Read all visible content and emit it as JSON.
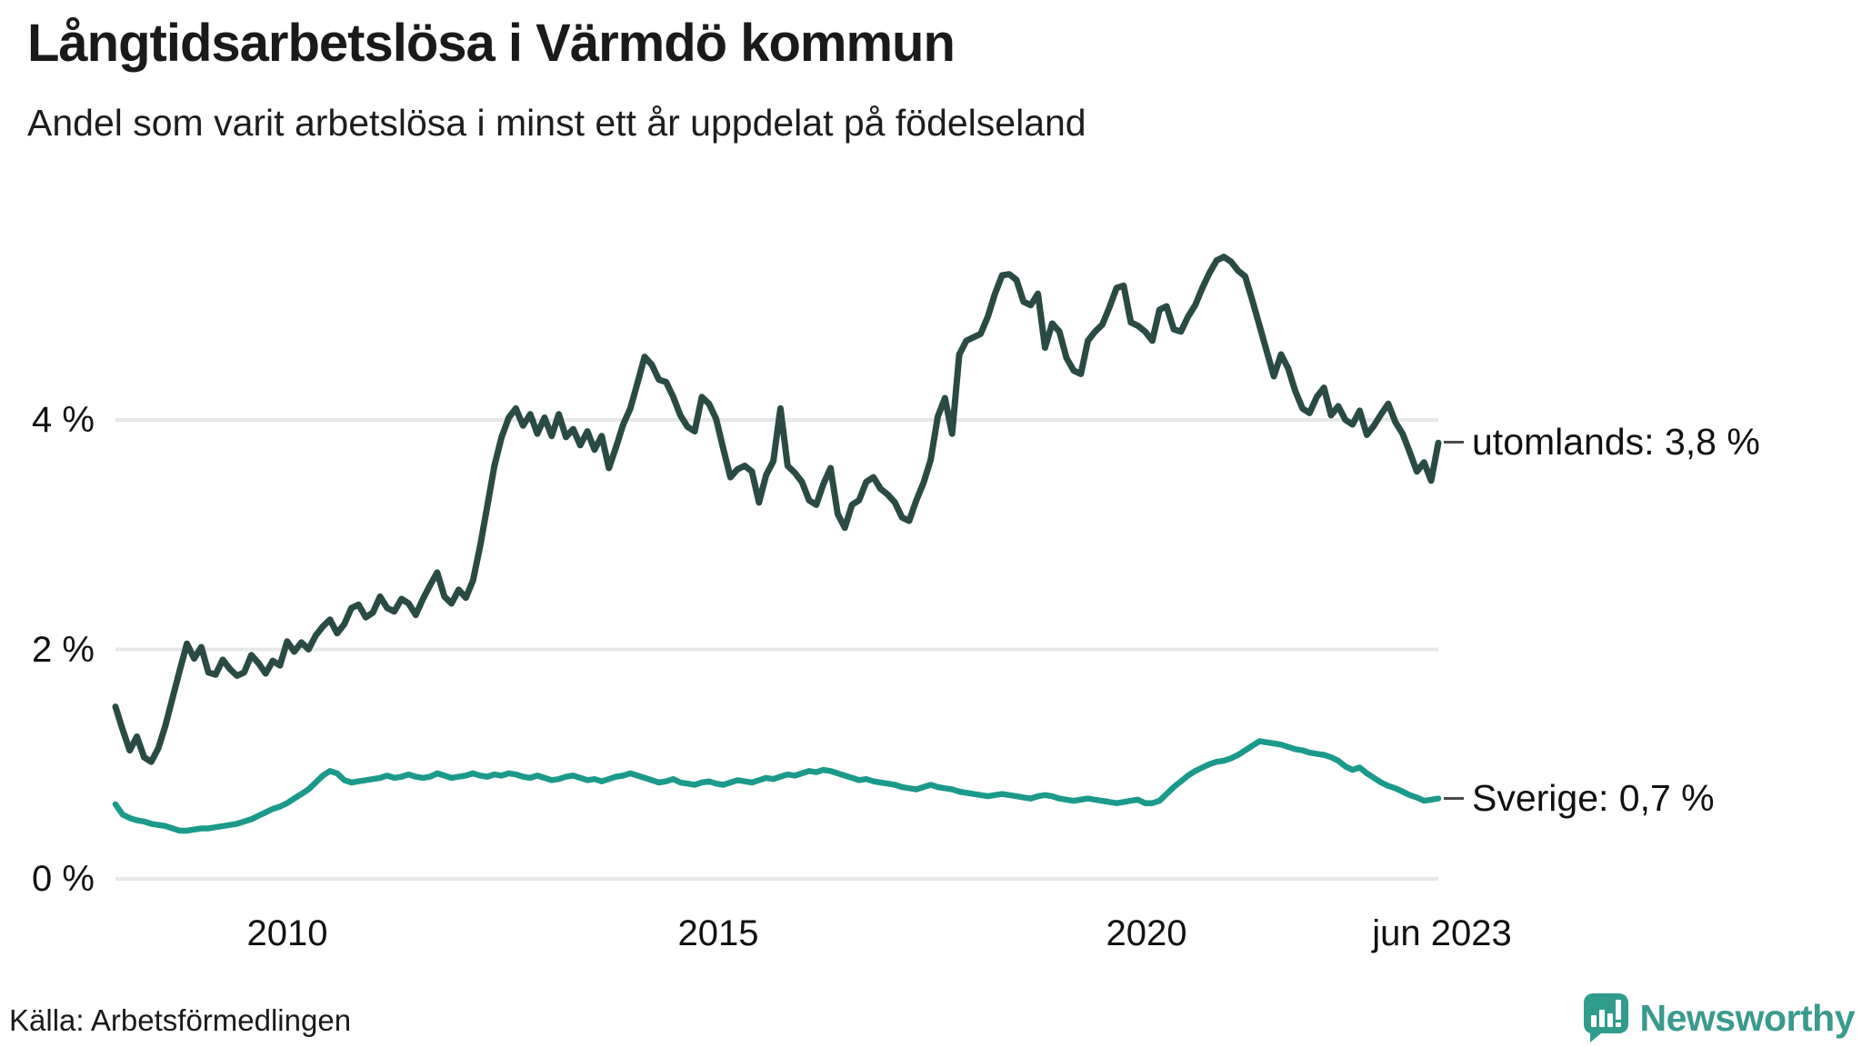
{
  "header": {
    "title": "Långtidsarbetslösa i Värmdö kommun",
    "subtitle": "Andel som varit arbetslösa i minst ett år uppdelat på födelseland"
  },
  "chart_data": {
    "type": "line",
    "title": "Långtidsarbetslösa i Värmdö kommun",
    "x_unit": "month",
    "x_start": "2008-01",
    "x_end": "2023-06",
    "ylim": [
      0,
      5.6
    ],
    "grid": "horizontal",
    "grid_color": "#e7e7e7",
    "yticks": [
      {
        "value": 4,
        "label": "4 %"
      },
      {
        "value": 2,
        "label": "2 %"
      },
      {
        "value": 0,
        "label": "0 %"
      }
    ],
    "xticks": [
      {
        "year": 2010.0,
        "label": "2010"
      },
      {
        "year": 2015.0,
        "label": "2015"
      },
      {
        "year": 2020.0,
        "label": "2020"
      },
      {
        "year": 2023.417,
        "label": "jun 2023"
      }
    ],
    "legend_position": "line-end-labels",
    "series": [
      {
        "name": "utomlands",
        "end_label": "utomlands: 3,8 %",
        "end_value_pct": 3.8,
        "color": "#294b44",
        "values": [
          1.5,
          1.3,
          1.12,
          1.24,
          1.06,
          1.02,
          1.14,
          1.34,
          1.58,
          1.82,
          2.05,
          1.92,
          2.02,
          1.8,
          1.78,
          1.91,
          1.83,
          1.77,
          1.8,
          1.95,
          1.88,
          1.79,
          1.9,
          1.86,
          2.07,
          1.98,
          2.06,
          2.0,
          2.12,
          2.2,
          2.26,
          2.14,
          2.22,
          2.36,
          2.39,
          2.28,
          2.32,
          2.46,
          2.36,
          2.33,
          2.44,
          2.4,
          2.3,
          2.44,
          2.56,
          2.67,
          2.46,
          2.4,
          2.52,
          2.45,
          2.6,
          2.9,
          3.25,
          3.6,
          3.85,
          4.02,
          4.1,
          3.95,
          4.05,
          3.88,
          4.02,
          3.86,
          4.05,
          3.85,
          3.92,
          3.78,
          3.9,
          3.74,
          3.86,
          3.58,
          3.76,
          3.96,
          4.1,
          4.32,
          4.55,
          4.48,
          4.35,
          4.33,
          4.2,
          4.04,
          3.94,
          3.9,
          4.2,
          4.14,
          4.01,
          3.75,
          3.5,
          3.57,
          3.6,
          3.55,
          3.28,
          3.52,
          3.64,
          4.1,
          3.6,
          3.54,
          3.46,
          3.3,
          3.26,
          3.44,
          3.58,
          3.18,
          3.06,
          3.26,
          3.3,
          3.46,
          3.5,
          3.4,
          3.35,
          3.28,
          3.15,
          3.12,
          3.3,
          3.45,
          3.65,
          4.03,
          4.19,
          3.88,
          4.57,
          4.69,
          4.72,
          4.75,
          4.9,
          5.1,
          5.26,
          5.27,
          5.22,
          5.03,
          5.0,
          5.1,
          4.63,
          4.84,
          4.77,
          4.54,
          4.43,
          4.4,
          4.69,
          4.77,
          4.83,
          4.98,
          5.15,
          5.17,
          4.85,
          4.82,
          4.77,
          4.69,
          4.96,
          4.99,
          4.79,
          4.77,
          4.9,
          5.0,
          5.15,
          5.28,
          5.39,
          5.42,
          5.38,
          5.3,
          5.25,
          5.04,
          4.82,
          4.6,
          4.38,
          4.57,
          4.45,
          4.25,
          4.1,
          4.06,
          4.2,
          4.28,
          4.04,
          4.12,
          4.0,
          3.96,
          4.08,
          3.87,
          3.95,
          4.05,
          4.14,
          3.98,
          3.88,
          3.72,
          3.55,
          3.63,
          3.47,
          3.8
        ]
      },
      {
        "name": "Sverige",
        "end_label": "Sverige: 0,7 %",
        "end_value_pct": 0.7,
        "color": "#1b9a8c",
        "values": [
          0.65,
          0.56,
          0.53,
          0.51,
          0.5,
          0.48,
          0.47,
          0.46,
          0.44,
          0.42,
          0.42,
          0.43,
          0.44,
          0.44,
          0.45,
          0.46,
          0.47,
          0.48,
          0.5,
          0.52,
          0.55,
          0.58,
          0.61,
          0.63,
          0.66,
          0.7,
          0.74,
          0.78,
          0.84,
          0.9,
          0.94,
          0.92,
          0.86,
          0.84,
          0.85,
          0.86,
          0.87,
          0.88,
          0.9,
          0.88,
          0.89,
          0.91,
          0.89,
          0.88,
          0.89,
          0.92,
          0.9,
          0.88,
          0.89,
          0.9,
          0.92,
          0.9,
          0.89,
          0.91,
          0.9,
          0.92,
          0.91,
          0.89,
          0.88,
          0.9,
          0.88,
          0.86,
          0.87,
          0.89,
          0.9,
          0.88,
          0.86,
          0.87,
          0.85,
          0.87,
          0.89,
          0.9,
          0.92,
          0.9,
          0.88,
          0.86,
          0.84,
          0.85,
          0.87,
          0.84,
          0.83,
          0.82,
          0.84,
          0.85,
          0.83,
          0.82,
          0.84,
          0.86,
          0.85,
          0.84,
          0.86,
          0.88,
          0.87,
          0.89,
          0.91,
          0.9,
          0.92,
          0.94,
          0.93,
          0.95,
          0.94,
          0.92,
          0.9,
          0.88,
          0.86,
          0.87,
          0.85,
          0.84,
          0.83,
          0.82,
          0.8,
          0.79,
          0.78,
          0.8,
          0.82,
          0.8,
          0.79,
          0.78,
          0.76,
          0.75,
          0.74,
          0.73,
          0.72,
          0.73,
          0.74,
          0.73,
          0.72,
          0.71,
          0.7,
          0.72,
          0.73,
          0.72,
          0.7,
          0.69,
          0.68,
          0.69,
          0.7,
          0.69,
          0.68,
          0.67,
          0.66,
          0.67,
          0.68,
          0.69,
          0.66,
          0.66,
          0.68,
          0.74,
          0.8,
          0.85,
          0.9,
          0.94,
          0.97,
          1.0,
          1.02,
          1.03,
          1.05,
          1.08,
          1.12,
          1.16,
          1.2,
          1.19,
          1.18,
          1.17,
          1.15,
          1.13,
          1.12,
          1.1,
          1.09,
          1.08,
          1.06,
          1.03,
          0.98,
          0.95,
          0.97,
          0.92,
          0.88,
          0.84,
          0.81,
          0.79,
          0.76,
          0.73,
          0.71,
          0.68,
          0.69,
          0.7
        ]
      }
    ]
  },
  "footer": {
    "source": "Källa: Arbetsförmedlingen",
    "brand": "Newsworthy",
    "brand_color": "#3a9a8e",
    "logo_icon": "bar-chart-speech-bubble-icon"
  }
}
